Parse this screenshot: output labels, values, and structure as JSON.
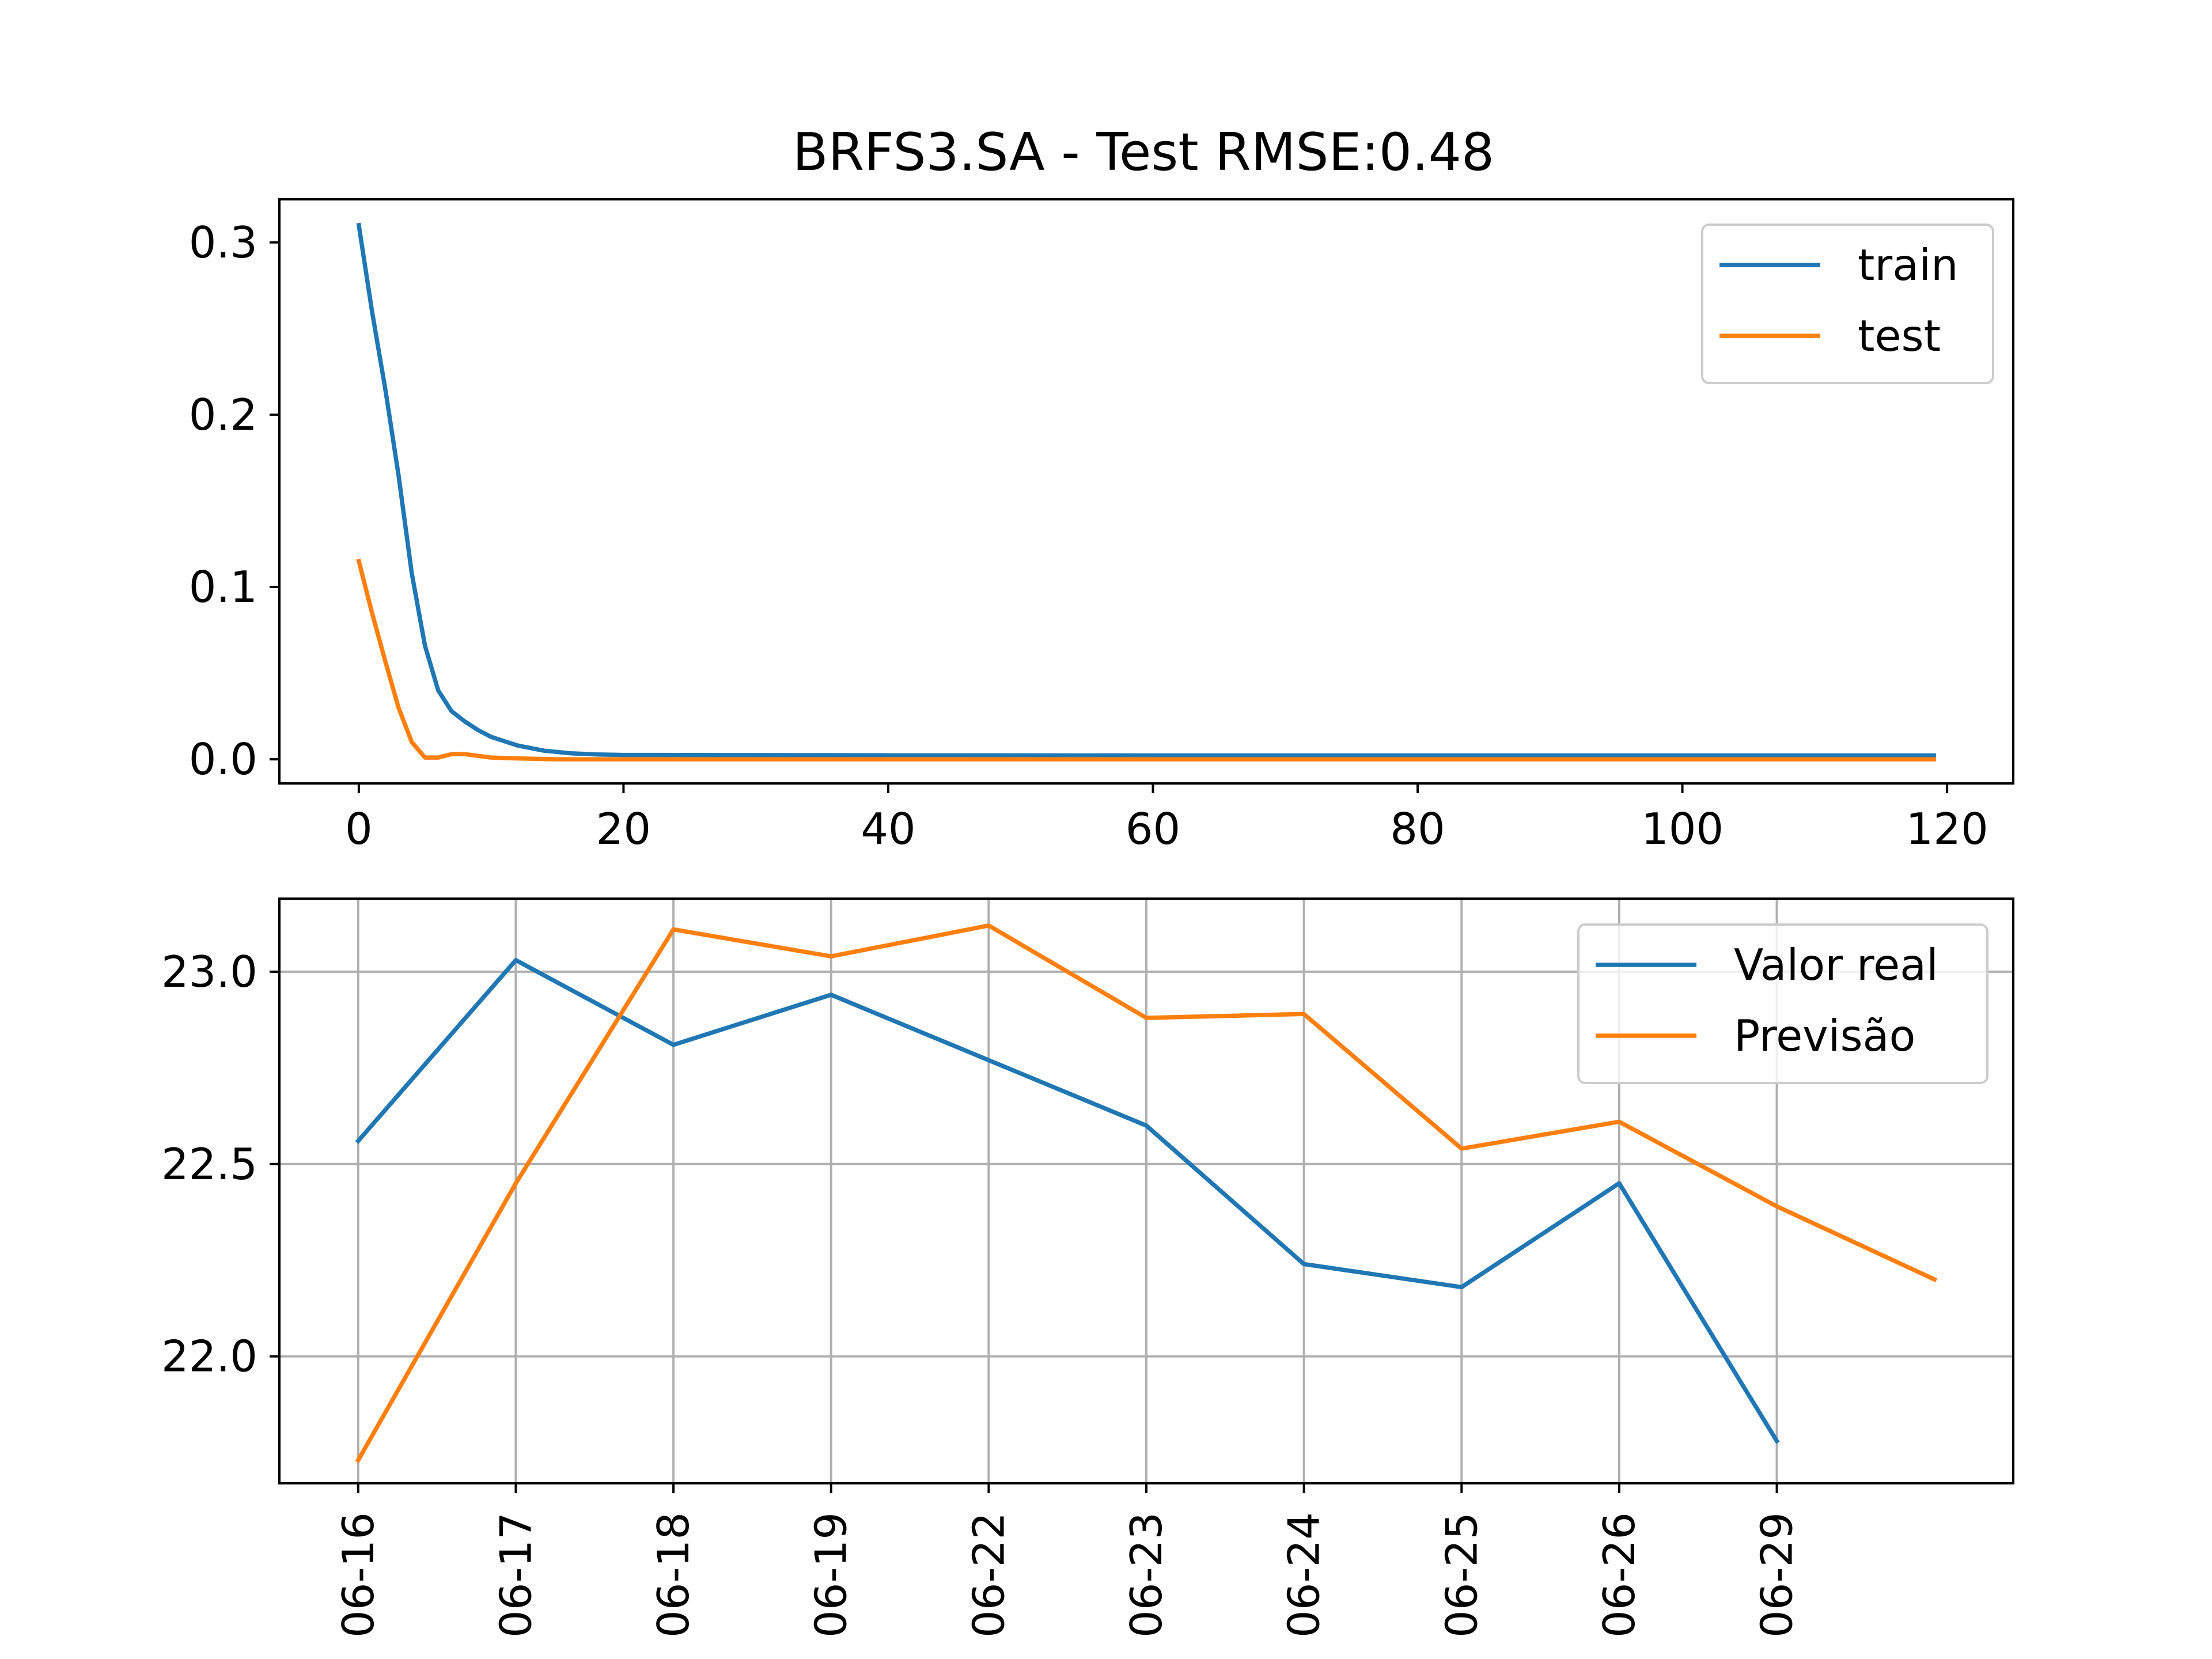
{
  "figure": {
    "title": "BRFS3.SA - Test RMSE:0.48"
  },
  "chart_data": [
    {
      "type": "line",
      "title": "BRFS3.SA - Test RMSE:0.48",
      "xlim": [
        -6,
        125
      ],
      "ylim": [
        -0.014,
        0.325
      ],
      "xticks": [
        0,
        20,
        40,
        60,
        80,
        100,
        120
      ],
      "xtick_labels": [
        "0",
        "20",
        "40",
        "60",
        "80",
        "100",
        "120"
      ],
      "yticks": [
        0.0,
        0.1,
        0.2,
        0.3
      ],
      "ytick_labels": [
        "0.0",
        "0.1",
        "0.2",
        "0.3"
      ],
      "grid": false,
      "legend_position": "top-right",
      "series": [
        {
          "name": "train",
          "color": "#1f77b4",
          "x": [
            0,
            1,
            2,
            3,
            4,
            5,
            6,
            7,
            8,
            9,
            10,
            12,
            14,
            16,
            18,
            20,
            30,
            40,
            60,
            80,
            100,
            119
          ],
          "y": [
            0.31,
            0.26,
            0.215,
            0.165,
            0.108,
            0.066,
            0.04,
            0.028,
            0.022,
            0.017,
            0.013,
            0.008,
            0.005,
            0.0035,
            0.0028,
            0.0025,
            0.0024,
            0.0023,
            0.0022,
            0.0022,
            0.0022,
            0.0022
          ]
        },
        {
          "name": "test",
          "color": "#ff7f0e",
          "x": [
            0,
            1,
            2,
            3,
            4,
            5,
            6,
            7,
            8,
            9,
            10,
            12,
            15,
            20,
            40,
            60,
            80,
            100,
            119
          ],
          "y": [
            0.115,
            0.085,
            0.057,
            0.03,
            0.01,
            0.001,
            0.001,
            0.003,
            0.003,
            0.002,
            0.001,
            0.0005,
            0.0,
            0.0,
            0.0,
            0.0,
            0.0,
            0.0,
            0.0
          ]
        }
      ]
    },
    {
      "type": "line",
      "categories": [
        "06-16",
        "06-17",
        "06-18",
        "06-19",
        "06-22",
        "06-23",
        "06-24",
        "06-25",
        "06-26",
        "06-29"
      ],
      "xlim": [
        -0.5,
        10.5
      ],
      "ylim": [
        21.67,
        23.19
      ],
      "yticks": [
        22.0,
        22.5,
        23.0
      ],
      "ytick_labels": [
        "22.0",
        "22.5",
        "23.0"
      ],
      "grid": true,
      "legend_position": "top-right",
      "series": [
        {
          "name": "Valor real",
          "color": "#1f77b4",
          "x": [
            0,
            1,
            2,
            3,
            4,
            5,
            6,
            7,
            8,
            9
          ],
          "y": [
            22.56,
            23.03,
            22.81,
            22.94,
            22.77,
            22.6,
            22.24,
            22.18,
            22.45,
            21.78
          ]
        },
        {
          "name": "Previsão",
          "color": "#ff7f0e",
          "x": [
            0,
            1,
            2,
            3,
            4,
            5,
            6,
            7,
            8,
            9,
            10
          ],
          "y": [
            21.73,
            22.45,
            23.11,
            23.04,
            23.12,
            22.88,
            22.89,
            22.54,
            22.61,
            22.39,
            22.2
          ]
        }
      ]
    }
  ]
}
